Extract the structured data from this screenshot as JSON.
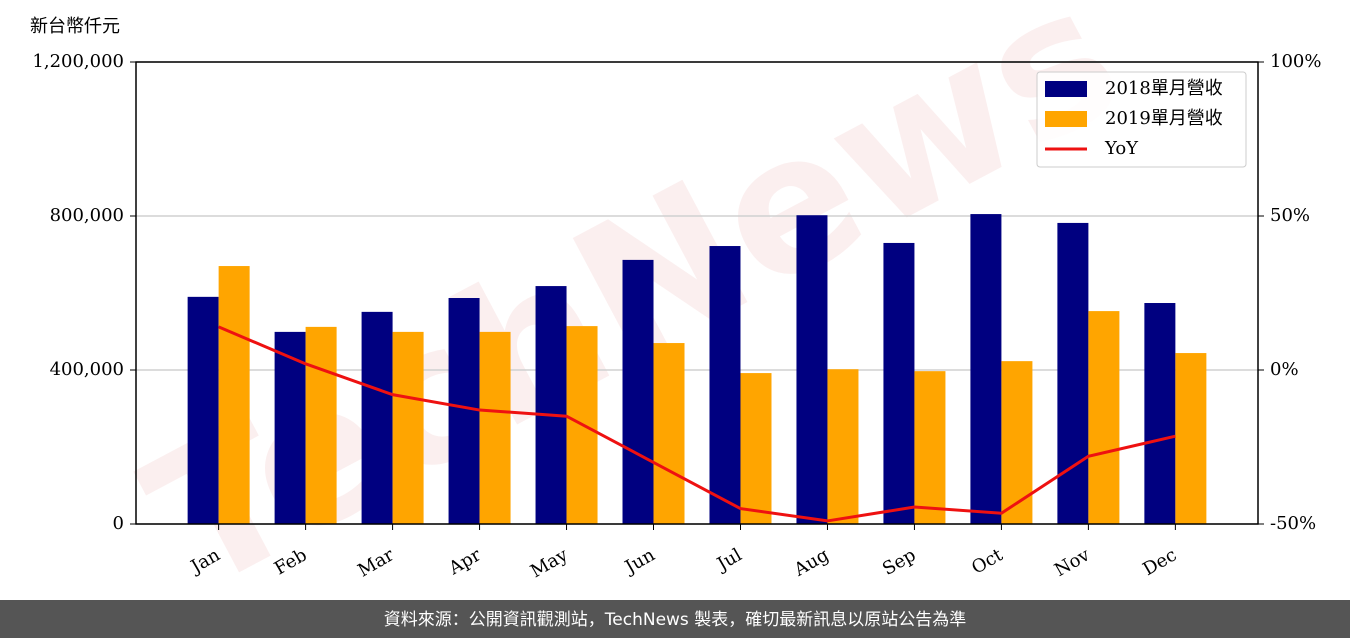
{
  "chart_data": {
    "type": "bar_line",
    "ylabel": "新台幣仟元",
    "categories": [
      "Jan",
      "Feb",
      "Mar",
      "Apr",
      "May",
      "Jun",
      "Jul",
      "Aug",
      "Sep",
      "Oct",
      "Nov",
      "Dec"
    ],
    "series": [
      {
        "name": "2018單月營收",
        "type": "bar",
        "color": "#000080",
        "values": [
          590000,
          499000,
          551000,
          587000,
          618000,
          686000,
          722000,
          802000,
          730000,
          805000,
          782000,
          574000
        ]
      },
      {
        "name": "2019單月營收",
        "type": "bar",
        "color": "#ffa500",
        "values": [
          670000,
          512000,
          499000,
          499000,
          514000,
          470000,
          392000,
          402000,
          397000,
          423000,
          553000,
          444000
        ]
      },
      {
        "name": "YoY",
        "type": "line",
        "axis": "y2",
        "color": "#ee1111",
        "values": [
          14,
          2,
          -8,
          -13,
          -15,
          -30,
          -45,
          -49,
          -44.5,
          -46.5,
          -28,
          -21.5
        ]
      }
    ],
    "ylim": [
      0,
      1200000
    ],
    "yticks": [
      0,
      {
        "value": 400000,
        "label": "400,000"
      },
      {
        "value": 800000,
        "label": "800,000"
      },
      {
        "value": 1200000,
        "label": "1,200,000"
      }
    ],
    "y2lim": [
      -50,
      100
    ],
    "y2ticks": [
      {
        "value": -50,
        "label": "-50%"
      },
      {
        "value": 0,
        "label": "0%"
      },
      {
        "value": 50,
        "label": "50%"
      },
      {
        "value": 100,
        "label": "100%"
      }
    ],
    "grid": true,
    "legend": "upper right",
    "watermark": "TechNews",
    "footer": "資料來源：公開資訊觀測站，TechNews 製表，確切最新訊息以原站公告為準"
  }
}
